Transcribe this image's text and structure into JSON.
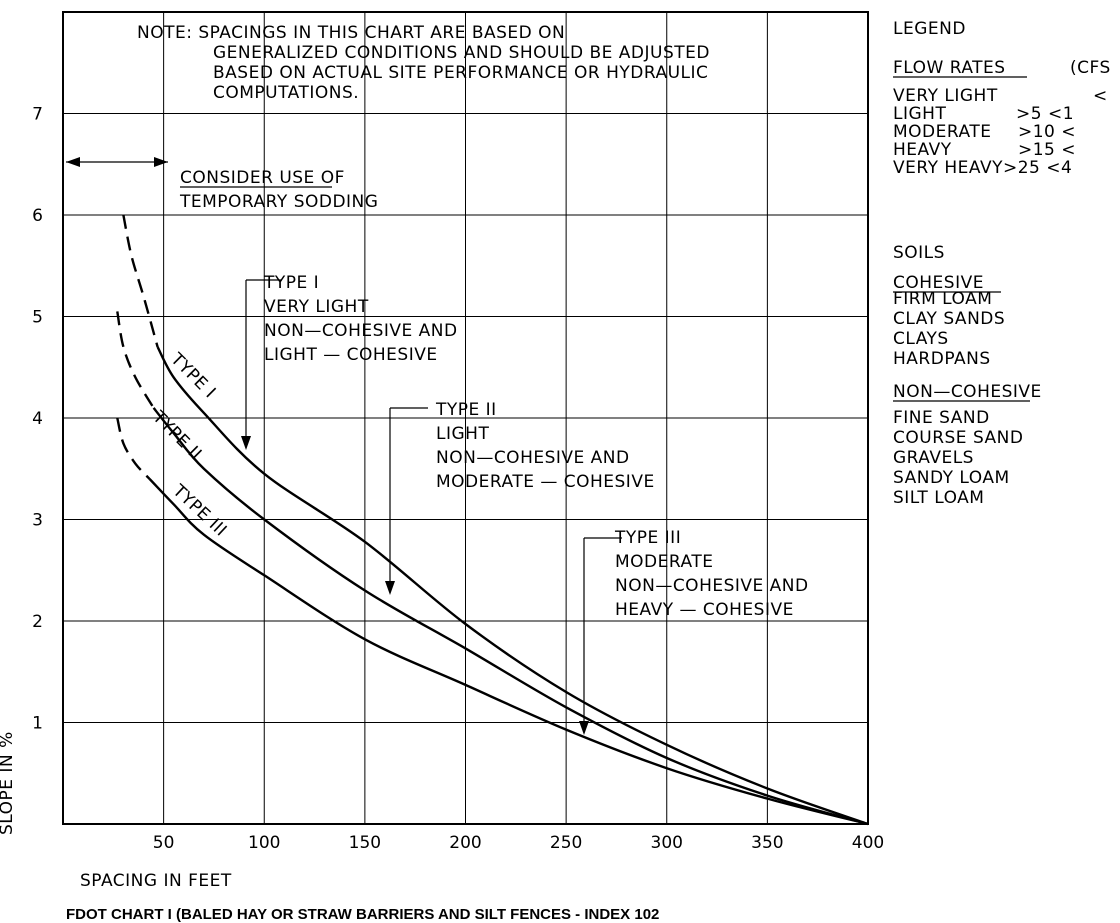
{
  "chart_data": {
    "type": "line",
    "title": "FDOT CHART I (BALED HAY OR STRAW BARRIERS AND SILT FENCES - INDEX 102",
    "xlabel": "SPACING IN FEET",
    "ylabel": "SLOPE IN %",
    "xlim": [
      0,
      400
    ],
    "ylim": [
      0,
      8
    ],
    "x_ticks": [
      50,
      100,
      150,
      200,
      250,
      300,
      350,
      400
    ],
    "y_ticks": [
      1,
      2,
      3,
      4,
      5,
      6,
      7
    ],
    "grid": true,
    "series": [
      {
        "name": "TYPE I",
        "solid": [
          [
            47,
            4.7
          ],
          [
            55,
            4.4
          ],
          [
            70,
            4.05
          ],
          [
            100,
            3.45
          ],
          [
            150,
            2.78
          ],
          [
            200,
            1.97
          ],
          [
            250,
            1.3
          ],
          [
            300,
            0.78
          ],
          [
            350,
            0.35
          ],
          [
            400,
            0.0
          ]
        ],
        "dashed": [
          [
            30,
            6.0
          ],
          [
            34,
            5.6
          ],
          [
            40,
            5.2
          ],
          [
            47,
            4.7
          ]
        ]
      },
      {
        "name": "TYPE II",
        "solid": [
          [
            45,
            4.1
          ],
          [
            55,
            3.85
          ],
          [
            70,
            3.5
          ],
          [
            100,
            3.0
          ],
          [
            150,
            2.3
          ],
          [
            200,
            1.73
          ],
          [
            250,
            1.15
          ],
          [
            300,
            0.65
          ],
          [
            350,
            0.28
          ],
          [
            400,
            0.0
          ]
        ],
        "dashed": [
          [
            27,
            5.05
          ],
          [
            30,
            4.7
          ],
          [
            36,
            4.4
          ],
          [
            45,
            4.1
          ]
        ]
      },
      {
        "name": "TYPE III",
        "solid": [
          [
            43,
            3.4
          ],
          [
            55,
            3.15
          ],
          [
            70,
            2.85
          ],
          [
            100,
            2.45
          ],
          [
            150,
            1.82
          ],
          [
            200,
            1.37
          ],
          [
            250,
            0.93
          ],
          [
            300,
            0.55
          ],
          [
            350,
            0.25
          ],
          [
            400,
            0.0
          ]
        ],
        "dashed": [
          [
            27,
            4.0
          ],
          [
            30,
            3.75
          ],
          [
            36,
            3.55
          ],
          [
            43,
            3.4
          ]
        ]
      }
    ],
    "curve_labels": [
      "TYPE I",
      "TYPE II",
      "TYPE III"
    ],
    "annotations": {
      "note": [
        "NOTE:  SPACINGS  IN  THIS  CHART  ARE  BASED  ON",
        "GENERALIZED  CONDITIONS  AND  SHOULD  BE  ADJUSTED",
        "BASED  ON  ACTUAL  SITE  PERFORMANCE  OR  HYDRAULIC",
        "COMPUTATIONS."
      ],
      "sodding": [
        "CONSIDER  USE  OF",
        "TEMPORARY  SODDING"
      ],
      "type1": [
        "TYPE  I",
        "VERY  LIGHT",
        "NON—COHESIVE  AND",
        "LIGHT  —  COHESIVE"
      ],
      "type2": [
        "TYPE  II",
        "LIGHT",
        "NON—COHESIVE  AND",
        "MODERATE  —  COHESIVE"
      ],
      "type3": [
        "TYPE  III",
        "MODERATE",
        "NON—COHESIVE  AND",
        "HEAVY  —  COHESIVE"
      ]
    },
    "legend": {
      "heading": "LEGEND",
      "flow_header": "FLOW  RATES",
      "flow_unit": "(CFS",
      "flow_rows": [
        {
          "name": "VERY  LIGHT",
          "range": "<"
        },
        {
          "name": "LIGHT",
          "range": ">5  <1"
        },
        {
          "name": "MODERATE",
          "range": ">10  <"
        },
        {
          "name": "HEAVY",
          "range": ">15  <"
        },
        {
          "name": "VERY  HEAVY",
          "range": ">25  <4"
        }
      ],
      "soils_heading": "SOILS",
      "cohesive_header": "COHESIVE",
      "cohesive_items": [
        "FIRM  LOAM",
        "CLAY  SANDS",
        "CLAYS",
        "HARDPANS"
      ],
      "noncohesive_header": "NON—COHESIVE",
      "noncohesive_items": [
        "FINE  SAND",
        "COURSE  SAND",
        "GRAVELS",
        "SANDY  LOAM",
        "SILT  LOAM"
      ]
    }
  }
}
